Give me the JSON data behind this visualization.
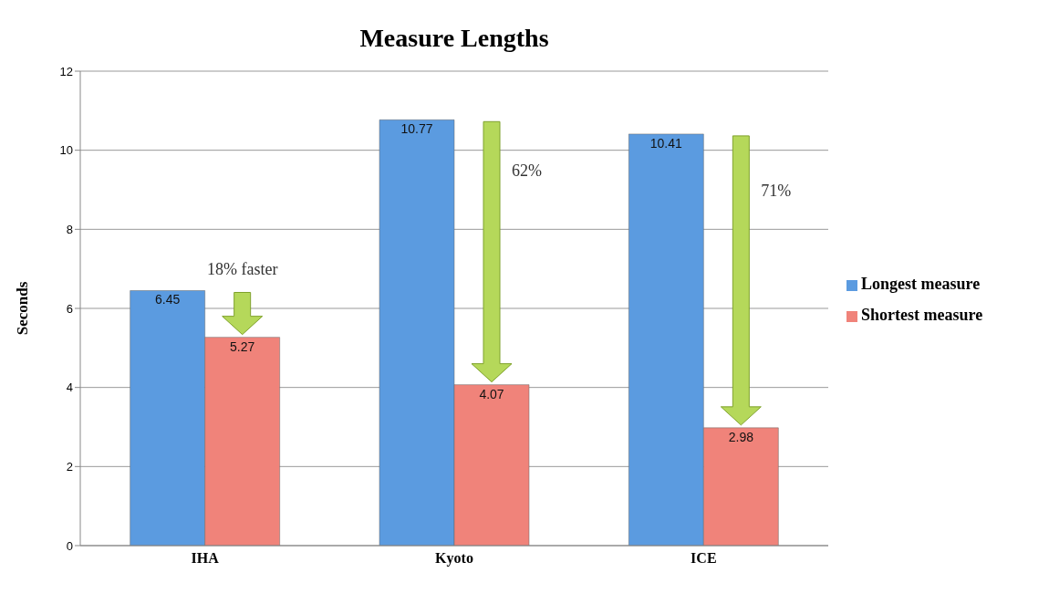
{
  "chart_data": {
    "type": "bar",
    "title": "Measure Lengths",
    "ylabel": "Seconds",
    "categories": [
      "IHA",
      "Kyoto",
      "ICE"
    ],
    "series": [
      {
        "name": "Longest measure",
        "color": "#5b9be0",
        "values": [
          6.45,
          10.77,
          10.41
        ]
      },
      {
        "name": "Shortest measure",
        "color": "#f0837a",
        "values": [
          5.27,
          4.07,
          2.98
        ]
      }
    ],
    "ylim": [
      0,
      12
    ],
    "yticks": [
      0,
      2,
      4,
      6,
      8,
      10,
      12
    ],
    "grid": "y",
    "legend": "right",
    "data_labels": true,
    "annotations": [
      "18% faster",
      "62%",
      "71%"
    ]
  }
}
